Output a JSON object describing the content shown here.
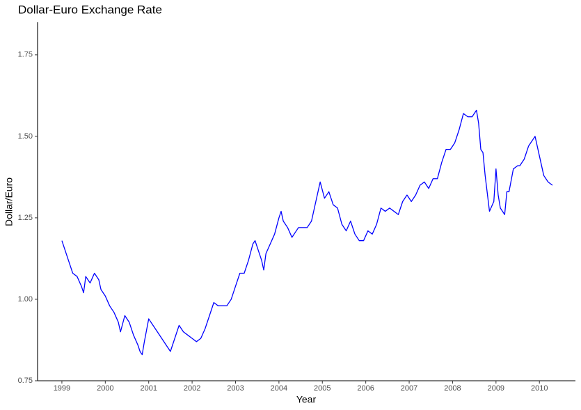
{
  "chart_data": {
    "type": "line",
    "title": "Dollar-Euro Exchange Rate",
    "x_label": "Year",
    "y_label": "Dollar/Euro",
    "xlim": [
      1998.44,
      2010.83
    ],
    "ylim": [
      0.75,
      1.85
    ],
    "xticks": [
      1999,
      2000,
      2001,
      2002,
      2003,
      2004,
      2005,
      2006,
      2007,
      2008,
      2009,
      2010
    ],
    "yticks": [
      {
        "value": 0.75,
        "label": "0.75"
      },
      {
        "value": 1.0,
        "label": "1.00"
      },
      {
        "value": 1.25,
        "label": "1.25"
      },
      {
        "value": 1.5,
        "label": "1.50"
      },
      {
        "value": 1.75,
        "label": "1.75"
      }
    ],
    "grid": false,
    "x": [
      1999.0,
      1999.05,
      1999.15,
      1999.25,
      1999.35,
      1999.45,
      1999.5,
      1999.55,
      1999.65,
      1999.75,
      1999.85,
      1999.9,
      2000.0,
      2000.1,
      2000.2,
      2000.3,
      2000.35,
      2000.45,
      2000.55,
      2000.65,
      2000.75,
      2000.8,
      2000.85,
      2000.9,
      2001.0,
      2001.1,
      2001.2,
      2001.3,
      2001.4,
      2001.5,
      2001.6,
      2001.7,
      2001.8,
      2001.9,
      2002.0,
      2002.1,
      2002.2,
      2002.3,
      2002.4,
      2002.5,
      2002.6,
      2002.7,
      2002.8,
      2002.9,
      2003.0,
      2003.1,
      2003.2,
      2003.3,
      2003.4,
      2003.45,
      2003.55,
      2003.6,
      2003.65,
      2003.7,
      2003.8,
      2003.9,
      2004.0,
      2004.05,
      2004.1,
      2004.2,
      2004.3,
      2004.35,
      2004.45,
      2004.55,
      2004.65,
      2004.75,
      2004.85,
      2004.95,
      2005.05,
      2005.15,
      2005.25,
      2005.35,
      2005.45,
      2005.55,
      2005.65,
      2005.75,
      2005.85,
      2005.95,
      2006.05,
      2006.15,
      2006.25,
      2006.35,
      2006.45,
      2006.55,
      2006.65,
      2006.75,
      2006.85,
      2006.95,
      2007.05,
      2007.15,
      2007.25,
      2007.35,
      2007.45,
      2007.55,
      2007.65,
      2007.75,
      2007.85,
      2007.95,
      2008.05,
      2008.15,
      2008.25,
      2008.35,
      2008.45,
      2008.55,
      2008.6,
      2008.65,
      2008.7,
      2008.75,
      2008.85,
      2008.95,
      2009.0,
      2009.05,
      2009.1,
      2009.2,
      2009.25,
      2009.3,
      2009.4,
      2009.5,
      2009.55,
      2009.65,
      2009.75,
      2009.85,
      2009.9,
      2010.0,
      2010.1,
      2010.2,
      2010.3
    ],
    "series": [
      {
        "name": "Dollar/Euro",
        "color": "#0000ff",
        "values": [
          1.18,
          1.16,
          1.12,
          1.08,
          1.07,
          1.04,
          1.02,
          1.07,
          1.05,
          1.08,
          1.06,
          1.03,
          1.01,
          0.98,
          0.96,
          0.93,
          0.9,
          0.95,
          0.93,
          0.89,
          0.86,
          0.84,
          0.83,
          0.87,
          0.94,
          0.92,
          0.9,
          0.88,
          0.86,
          0.84,
          0.88,
          0.92,
          0.9,
          0.89,
          0.88,
          0.87,
          0.88,
          0.91,
          0.95,
          0.99,
          0.98,
          0.98,
          0.98,
          1.0,
          1.04,
          1.08,
          1.08,
          1.12,
          1.17,
          1.18,
          1.14,
          1.12,
          1.09,
          1.14,
          1.17,
          1.2,
          1.25,
          1.27,
          1.24,
          1.22,
          1.19,
          1.2,
          1.22,
          1.22,
          1.22,
          1.24,
          1.3,
          1.36,
          1.31,
          1.33,
          1.29,
          1.28,
          1.23,
          1.21,
          1.24,
          1.2,
          1.18,
          1.18,
          1.21,
          1.2,
          1.23,
          1.28,
          1.27,
          1.28,
          1.27,
          1.26,
          1.3,
          1.32,
          1.3,
          1.32,
          1.35,
          1.36,
          1.34,
          1.37,
          1.37,
          1.42,
          1.46,
          1.46,
          1.48,
          1.52,
          1.57,
          1.56,
          1.56,
          1.58,
          1.54,
          1.46,
          1.45,
          1.38,
          1.27,
          1.3,
          1.4,
          1.32,
          1.28,
          1.26,
          1.33,
          1.33,
          1.4,
          1.41,
          1.41,
          1.43,
          1.47,
          1.49,
          1.5,
          1.44,
          1.38,
          1.36,
          1.35
        ]
      }
    ]
  }
}
